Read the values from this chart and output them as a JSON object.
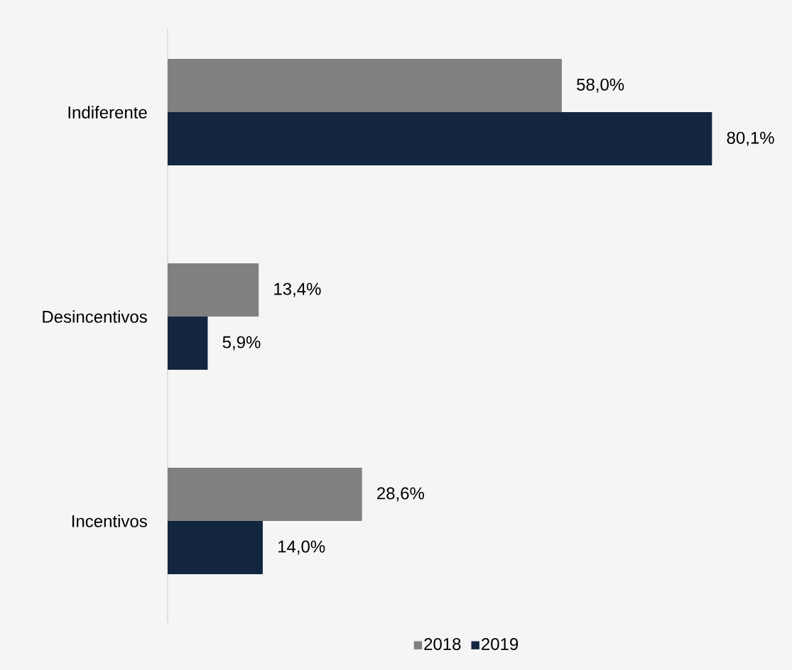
{
  "chart_data": {
    "type": "bar",
    "orientation": "horizontal",
    "categories": [
      "Indiferente",
      "Desincentivos",
      "Incentivos"
    ],
    "series": [
      {
        "name": "2018",
        "color": "#808080",
        "values": [
          58.0,
          13.4,
          28.6
        ],
        "value_labels": [
          "58,0%",
          "13,4%",
          "28,6%"
        ]
      },
      {
        "name": "2019",
        "color": "#12263f",
        "values": [
          80.1,
          5.9,
          14.0
        ],
        "value_labels": [
          "80,1%",
          "5,9%",
          "14,0%"
        ]
      }
    ],
    "legend": "bottom"
  }
}
